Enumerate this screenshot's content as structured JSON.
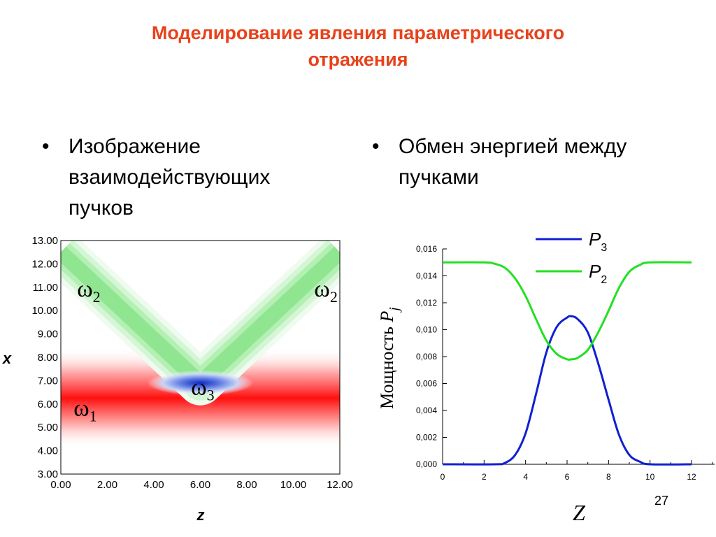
{
  "title_lines": [
    "Моделирование явления параметрического",
    "отражения"
  ],
  "bullets": {
    "left": {
      "symbol": "•",
      "lines": [
        "Изображение",
        "взаимодействующих",
        "пучков"
      ]
    },
    "right": {
      "symbol": "•",
      "lines": [
        "Обмен энергией между",
        "пучками"
      ]
    }
  },
  "slide_number": "27",
  "chart_data": [
    {
      "type": "heatmap",
      "xlabel": "z",
      "ylabel": "x",
      "xlim": [
        0,
        12
      ],
      "ylim": [
        3,
        13
      ],
      "xticks": [
        "0.00",
        "2.00",
        "4.00",
        "6.00",
        "8.00",
        "10.00",
        "12.00"
      ],
      "yticks": [
        "3.00",
        "4.00",
        "5.00",
        "6.00",
        "7.00",
        "8.00",
        "9.00",
        "10.00",
        "11.00",
        "12.00",
        "13.00"
      ],
      "annotations": [
        {
          "base": "ω",
          "sub": "2",
          "x": 0.7,
          "y": 10.6
        },
        {
          "base": "ω",
          "sub": "2",
          "x": 10.9,
          "y": 10.6
        },
        {
          "base": "ω",
          "sub": "3",
          "x": 5.6,
          "y": 6.4
        },
        {
          "base": "ω",
          "sub": "1",
          "x": 0.55,
          "y": 5.5
        }
      ],
      "beams": {
        "green": {
          "vertex": [
            6,
            6.9
          ],
          "left_end": [
            0,
            12.5
          ],
          "right_end": [
            12,
            12.5
          ],
          "color": "#22d422"
        },
        "red": {
          "center_y": 6.0,
          "color": "#ff1a1a"
        },
        "blue": {
          "center": [
            6,
            6.9
          ],
          "color": "#1a3fd6"
        }
      }
    },
    {
      "type": "line",
      "xlabel": "Z",
      "ylabel_base": "Мощность ",
      "ylabel_symbol": "P",
      "ylabel_sub": "j",
      "xlim": [
        0,
        13
      ],
      "ylim": [
        0,
        0.016
      ],
      "xticks": [
        "0",
        "2",
        "4",
        "6",
        "8",
        "10",
        "12"
      ],
      "yticks": [
        "0,000",
        "0,002",
        "0,004",
        "0,006",
        "0,008",
        "0,010",
        "0,012",
        "0,014",
        "0,016"
      ],
      "legend_position": "top-center",
      "series": [
        {
          "name_base": "P",
          "name_sub": "3",
          "color": "#1020d0",
          "x": [
            0,
            2.5,
            3,
            3.5,
            4,
            4.5,
            5,
            5.5,
            6,
            6.2,
            6.5,
            7,
            7.5,
            8,
            8.5,
            9,
            9.5,
            10,
            12
          ],
          "y": [
            0,
            0.0,
            0.0001,
            0.0007,
            0.0023,
            0.0052,
            0.0083,
            0.0102,
            0.0109,
            0.011,
            0.0108,
            0.0098,
            0.0075,
            0.0048,
            0.0022,
            0.0007,
            0.0002,
            0.0,
            0
          ]
        },
        {
          "name_base": "P",
          "name_sub": "2",
          "color": "#22e022",
          "x": [
            0,
            2,
            2.5,
            3,
            3.5,
            4,
            4.5,
            5,
            5.5,
            6,
            6.2,
            6.5,
            7,
            7.5,
            8,
            8.5,
            9,
            9.5,
            10,
            12
          ],
          "y": [
            0.015,
            0.015,
            0.0149,
            0.0146,
            0.0138,
            0.0125,
            0.0108,
            0.0092,
            0.0082,
            0.0078,
            0.0078,
            0.0079,
            0.0085,
            0.0098,
            0.0114,
            0.0131,
            0.0143,
            0.0148,
            0.015,
            0.015
          ]
        }
      ]
    }
  ]
}
